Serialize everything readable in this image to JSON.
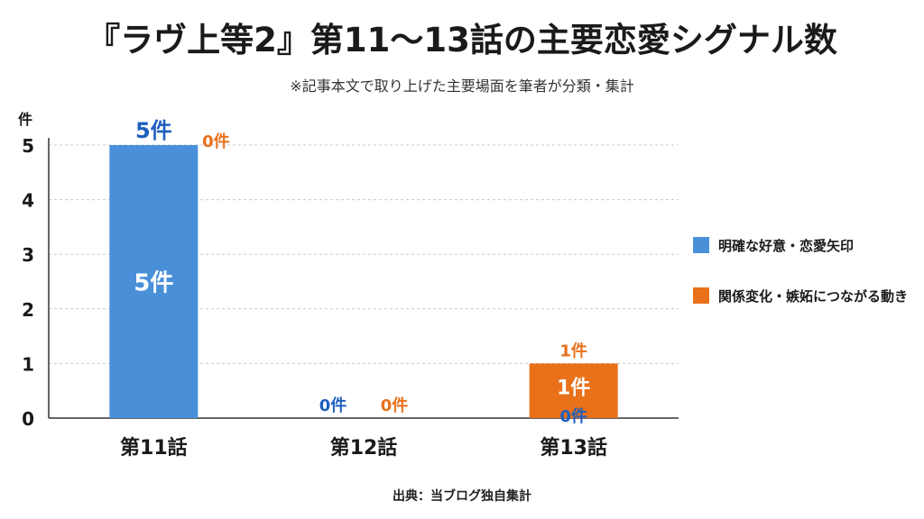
{
  "page": {
    "title": "『ラヴ上等2』第11〜13話の主要恋愛シグナル数",
    "subtitle": "※記事本文で取り上げた主要場面を筆者が分類・集計",
    "source": "出典：当ブログ独自集計"
  },
  "chart_data": {
    "type": "bar",
    "title": "『ラヴ上等2』第11〜13話の主要恋愛シグナル数",
    "subtitle": "※記事本文で取り上げた主要場面を筆者が分類・集計",
    "ylabel": "件",
    "xlabel": "",
    "unit": "件",
    "ylim": [
      0,
      5
    ],
    "yticks": [
      0,
      1,
      2,
      3,
      4,
      5
    ],
    "categories": [
      "第11話",
      "第12話",
      "第13話"
    ],
    "series": [
      {
        "name": "明確な好意・恋愛矢印",
        "color": "#4a90d9",
        "label_color": "#1f5fbf",
        "values": [
          5,
          0,
          0
        ]
      },
      {
        "name": "関係変化・嫉妬につながる動き",
        "color": "#e8711a",
        "label_color": "#e8711a",
        "values": [
          0,
          0,
          1
        ]
      }
    ],
    "legend_position": "right",
    "grid": true,
    "stacked": false
  }
}
